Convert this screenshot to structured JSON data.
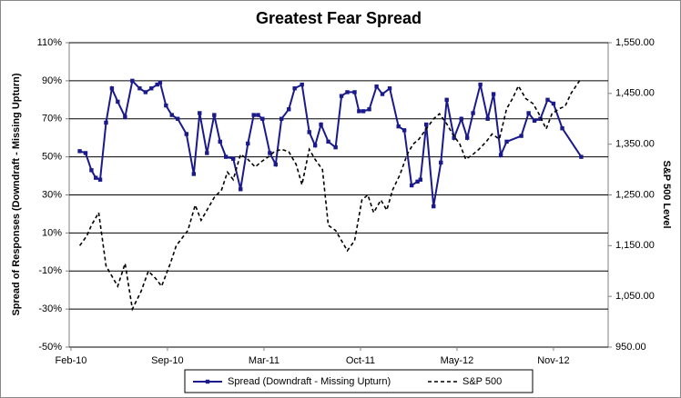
{
  "chart_data": {
    "type": "line",
    "title": "Greatest Fear Spread",
    "y_label": "Spread of Responses (Downdraft - Missing Upturn)",
    "y2_label": "S&P 500 Level",
    "xlim": [
      -0.12,
      36.74
    ],
    "xticks": [
      {
        "value": 0,
        "label": "Feb-10"
      },
      {
        "value": 6.6,
        "label": "Sep-10"
      },
      {
        "value": 13.2,
        "label": "Mar-11"
      },
      {
        "value": 19.8,
        "label": "Oct-11"
      },
      {
        "value": 26.4,
        "label": "May-12"
      },
      {
        "value": 33,
        "label": "Nov-12"
      }
    ],
    "ylim": [
      -50,
      110
    ],
    "yticks": [
      {
        "value": -50,
        "label": "-50%"
      },
      {
        "value": -30,
        "label": "-30%"
      },
      {
        "value": -10,
        "label": "-10%"
      },
      {
        "value": 10,
        "label": "10%"
      },
      {
        "value": 30,
        "label": "30%"
      },
      {
        "value": 50,
        "label": "50%"
      },
      {
        "value": 70,
        "label": "70%"
      },
      {
        "value": 90,
        "label": "90%"
      },
      {
        "value": 110,
        "label": "110%"
      }
    ],
    "y2lim": [
      950,
      1550
    ],
    "y2ticks": [
      {
        "value": 950,
        "label": "950.00"
      },
      {
        "value": 1050,
        "label": "1,050.00"
      },
      {
        "value": 1150,
        "label": "1,150.00"
      },
      {
        "value": 1250,
        "label": "1,250.00"
      },
      {
        "value": 1350,
        "label": "1,350.00"
      },
      {
        "value": 1450,
        "label": "1,450.00"
      },
      {
        "value": 1550,
        "label": "1,550.00"
      }
    ],
    "grid": true,
    "legend": "bottom",
    "series": [
      {
        "name": "Spread (Downdraft - Missing Upturn)",
        "color": "#1a1a8c",
        "marker": "square",
        "axis": "y",
        "x": [
          0.6,
          1.0,
          1.4,
          1.7,
          2.0,
          2.4,
          2.8,
          3.2,
          3.7,
          4.2,
          4.7,
          5.1,
          5.5,
          5.9,
          6.1,
          6.5,
          6.9,
          7.3,
          7.9,
          8.4,
          8.8,
          9.3,
          9.8,
          10.2,
          10.6,
          11.1,
          11.6,
          12.1,
          12.5,
          12.8,
          13.1,
          13.6,
          14.0,
          14.4,
          14.9,
          15.3,
          15.8,
          16.3,
          16.7,
          17.1,
          17.6,
          18.1,
          18.5,
          18.9,
          19.4,
          19.7,
          20.0,
          20.4,
          20.9,
          21.3,
          21.8,
          22.4,
          22.8,
          23.3,
          23.7,
          23.9,
          24.3,
          24.8,
          25.3,
          25.7,
          26.2,
          26.7,
          27.1,
          27.5,
          28.0,
          28.5,
          28.9,
          29.4,
          29.8,
          30.8,
          31.3,
          31.7,
          32.1,
          32.6,
          33.0,
          33.6,
          34.9
        ],
        "values": [
          53,
          52,
          43,
          39,
          38,
          68,
          86,
          79,
          71,
          90,
          86,
          84,
          86,
          88,
          89,
          77,
          72,
          70,
          62,
          41,
          73,
          52,
          72,
          58,
          50,
          49,
          33,
          57,
          72,
          72,
          70,
          52,
          46,
          70,
          75,
          86,
          88,
          63,
          56,
          67,
          58,
          55,
          82,
          84,
          84,
          74,
          74,
          75,
          87,
          83,
          86,
          66,
          64,
          35,
          37,
          38,
          67,
          24,
          47,
          80,
          60,
          70,
          60,
          73,
          88,
          70,
          83,
          51,
          58,
          61,
          73,
          69,
          70,
          80,
          78,
          65,
          50
        ]
      },
      {
        "name": "S&P 500",
        "color": "#000000",
        "dash": true,
        "axis": "y2",
        "x": [
          0.6,
          1.1,
          1.4,
          1.9,
          2.4,
          2.8,
          3.2,
          3.7,
          4.2,
          4.8,
          5.3,
          5.8,
          6.2,
          6.8,
          7.2,
          7.6,
          8.0,
          8.5,
          8.9,
          9.3,
          9.8,
          10.3,
          10.7,
          11.1,
          11.6,
          12.1,
          12.6,
          13.0,
          13.5,
          13.9,
          14.4,
          14.9,
          15.4,
          15.8,
          16.3,
          16.7,
          17.2,
          17.6,
          18.1,
          18.5,
          18.9,
          19.4,
          19.9,
          20.3,
          20.7,
          21.2,
          21.6,
          22.0,
          22.5,
          23.0,
          23.4,
          23.8,
          24.3,
          24.8,
          25.2,
          25.7,
          26.1,
          26.6,
          27.0,
          27.5,
          27.9,
          28.4,
          28.8,
          29.3,
          29.8,
          30.2,
          30.6,
          31.1,
          31.6,
          32.0,
          32.5,
          32.9,
          33.4,
          33.8,
          34.2,
          34.9
        ],
        "values": [
          1150,
          1170,
          1190,
          1215,
          1110,
          1090,
          1070,
          1115,
          1025,
          1060,
          1100,
          1085,
          1070,
          1115,
          1150,
          1165,
          1180,
          1230,
          1200,
          1220,
          1245,
          1260,
          1295,
          1280,
          1330,
          1320,
          1305,
          1315,
          1325,
          1335,
          1340,
          1335,
          1310,
          1270,
          1340,
          1320,
          1300,
          1190,
          1180,
          1160,
          1140,
          1160,
          1240,
          1250,
          1215,
          1240,
          1220,
          1260,
          1290,
          1330,
          1350,
          1360,
          1380,
          1400,
          1410,
          1390,
          1370,
          1350,
          1320,
          1330,
          1340,
          1355,
          1370,
          1360,
          1420,
          1440,
          1465,
          1440,
          1430,
          1410,
          1380,
          1410,
          1420,
          1425,
          1450,
          1480
        ]
      }
    ]
  }
}
